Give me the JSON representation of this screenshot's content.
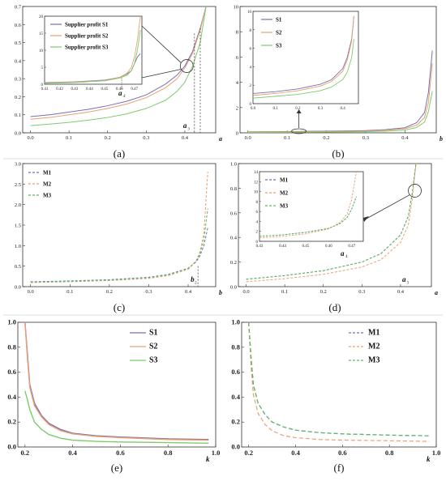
{
  "colors": {
    "s1": "#7b6fb0",
    "s2": "#e8a070",
    "s3": "#7ccc6c",
    "m1": "#6a78b8",
    "m2": "#e8a070",
    "m3": "#62b862",
    "frame": "#333333"
  },
  "chart_data": [
    {
      "id": "a",
      "type": "line",
      "caption": "(a)",
      "xlabel": "a",
      "xlim": [
        -0.02,
        0.48
      ],
      "ylim": [
        0,
        0.7
      ],
      "xticks": [
        "0.0",
        "0.1",
        "0.2",
        "0.3",
        "0.4"
      ],
      "yticks": [
        "0.0",
        "0.1",
        "0.2",
        "0.3",
        "0.4",
        "0.5",
        "0.6",
        "0.7"
      ],
      "legend": "inset-top-left",
      "series": [
        {
          "name": "Supplier profit S1",
          "x": [
            0,
            0.05,
            0.1,
            0.15,
            0.2,
            0.25,
            0.3,
            0.35,
            0.38,
            0.4,
            0.42,
            0.44,
            0.455
          ],
          "y": [
            0.09,
            0.1,
            0.115,
            0.13,
            0.15,
            0.175,
            0.21,
            0.27,
            0.32,
            0.37,
            0.45,
            0.58,
            0.7
          ]
        },
        {
          "name": "Supplier profit S2",
          "x": [
            0,
            0.05,
            0.1,
            0.15,
            0.2,
            0.25,
            0.3,
            0.35,
            0.38,
            0.4,
            0.42,
            0.44,
            0.455
          ],
          "y": [
            0.075,
            0.085,
            0.1,
            0.115,
            0.135,
            0.16,
            0.195,
            0.25,
            0.3,
            0.36,
            0.44,
            0.57,
            0.7
          ]
        },
        {
          "name": "Supplier profit S3",
          "x": [
            0,
            0.05,
            0.1,
            0.15,
            0.2,
            0.25,
            0.3,
            0.35,
            0.38,
            0.4,
            0.42,
            0.44,
            0.455
          ],
          "y": [
            0.04,
            0.048,
            0.058,
            0.07,
            0.085,
            0.105,
            0.135,
            0.18,
            0.23,
            0.28,
            0.37,
            0.5,
            0.7
          ]
        }
      ],
      "inset": {
        "xlim": [
          0.41,
          0.475
        ],
        "ylim": [
          0,
          20
        ],
        "xticks": [
          "0.41",
          "0.42",
          "0.43",
          "0.44",
          "0.45",
          "0.46",
          "0.47"
        ],
        "yticks": [
          "0",
          "5",
          "10",
          "15",
          "20"
        ],
        "annotation": "a4",
        "series": [
          {
            "x": [
              0.41,
              0.43,
              0.45,
              0.46,
              0.465,
              0.468,
              0.47,
              0.472,
              0.474
            ],
            "y": [
              0.5,
              0.7,
              1.2,
              2,
              3,
              4,
              6,
              8,
              9
            ]
          },
          {
            "x": [
              0.41,
              0.43,
              0.45,
              0.46,
              0.465,
              0.468,
              0.47,
              0.472,
              0.474
            ],
            "y": [
              0.4,
              0.6,
              1.1,
              2,
              3.2,
              5,
              8,
              13,
              20
            ]
          },
          {
            "x": [
              0.41,
              0.43,
              0.45,
              0.46,
              0.465,
              0.468,
              0.47,
              0.472,
              0.474
            ],
            "y": [
              0.3,
              0.5,
              1,
              1.8,
              2.6,
              4,
              6,
              10,
              16
            ]
          }
        ]
      },
      "markers": [
        "a3"
      ]
    },
    {
      "id": "b",
      "type": "line",
      "caption": "(b)",
      "xlabel": "b",
      "xlim": [
        -0.02,
        0.48
      ],
      "ylim": [
        0,
        10
      ],
      "xticks": [
        "0.0",
        "0.1",
        "0.2",
        "0.3",
        "0.4"
      ],
      "yticks": [
        "0",
        "2",
        "4",
        "6",
        "8",
        "10"
      ],
      "legend": "inset-top-left",
      "series": [
        {
          "name": "S1",
          "x": [
            0,
            0.1,
            0.2,
            0.3,
            0.35,
            0.4,
            0.43,
            0.45,
            0.46,
            0.47
          ],
          "y": [
            0.08,
            0.1,
            0.13,
            0.18,
            0.25,
            0.4,
            0.8,
            1.6,
            3.2,
            6.5
          ]
        },
        {
          "name": "S2",
          "x": [
            0,
            0.1,
            0.2,
            0.3,
            0.35,
            0.4,
            0.43,
            0.45,
            0.46,
            0.47
          ],
          "y": [
            0.06,
            0.08,
            0.1,
            0.14,
            0.2,
            0.32,
            0.6,
            1.2,
            2.4,
            5.5
          ]
        },
        {
          "name": "S3",
          "x": [
            0,
            0.1,
            0.2,
            0.3,
            0.35,
            0.4,
            0.43,
            0.45,
            0.46,
            0.47
          ],
          "y": [
            0.03,
            0.04,
            0.06,
            0.09,
            0.13,
            0.22,
            0.42,
            0.85,
            1.7,
            3.3
          ]
        }
      ],
      "inset": {
        "xlim": [
          0,
          0.47
        ],
        "ylim": [
          0,
          10
        ],
        "xticks": [
          "0.0",
          "0.1",
          "0.2",
          "0.3",
          "0.4"
        ],
        "yticks": [
          "0",
          "2",
          "4",
          "6",
          "8",
          "10"
        ],
        "series": [
          {
            "x": [
              0,
              0.1,
              0.2,
              0.3,
              0.35,
              0.4,
              0.42,
              0.44,
              0.45
            ],
            "y": [
              1.1,
              1.3,
              1.6,
              2.1,
              2.6,
              3.8,
              5,
              7,
              9.5
            ]
          },
          {
            "x": [
              0,
              0.1,
              0.2,
              0.3,
              0.35,
              0.4,
              0.42,
              0.44,
              0.45
            ],
            "y": [
              0.9,
              1.1,
              1.4,
              1.9,
              2.4,
              3.5,
              4.7,
              6.8,
              9.5
            ]
          },
          {
            "x": [
              0,
              0.1,
              0.2,
              0.3,
              0.35,
              0.4,
              0.42,
              0.44,
              0.45
            ],
            "y": [
              0.6,
              0.8,
              1.0,
              1.4,
              1.8,
              2.6,
              3.4,
              5,
              7
            ]
          }
        ]
      }
    },
    {
      "id": "c",
      "type": "line",
      "caption": "(c)",
      "xlabel": "b",
      "xlim": [
        -0.02,
        0.47
      ],
      "ylim": [
        0,
        3.0
      ],
      "xticks": [
        "0.0",
        "0.1",
        "0.2",
        "0.3",
        "0.4"
      ],
      "yticks": [
        "0.0",
        "0.5",
        "1.0",
        "1.5",
        "2.0",
        "2.5",
        "3.0"
      ],
      "legend": "top-left",
      "series": [
        {
          "name": "M1",
          "x": [
            0,
            0.1,
            0.2,
            0.3,
            0.35,
            0.4,
            0.42,
            0.43,
            0.44,
            0.45
          ],
          "y": [
            0.12,
            0.14,
            0.17,
            0.23,
            0.3,
            0.45,
            0.6,
            0.75,
            1.0,
            1.45
          ]
        },
        {
          "name": "M2",
          "x": [
            0,
            0.1,
            0.2,
            0.3,
            0.35,
            0.4,
            0.42,
            0.43,
            0.44,
            0.45
          ],
          "y": [
            0.1,
            0.12,
            0.15,
            0.2,
            0.27,
            0.42,
            0.62,
            0.85,
            1.3,
            2.8
          ]
        },
        {
          "name": "M3",
          "x": [
            0,
            0.1,
            0.2,
            0.3,
            0.35,
            0.4,
            0.42,
            0.43,
            0.44,
            0.45
          ],
          "y": [
            0.11,
            0.13,
            0.16,
            0.22,
            0.29,
            0.44,
            0.62,
            0.8,
            1.15,
            1.9
          ]
        }
      ],
      "markers": [
        "b2"
      ]
    },
    {
      "id": "d",
      "type": "line",
      "caption": "(d)",
      "xlabel": "a",
      "xlim": [
        -0.02,
        0.48
      ],
      "ylim": [
        0,
        1.0
      ],
      "xticks": [
        "0.0",
        "0.1",
        "0.2",
        "0.3",
        "0.4"
      ],
      "yticks": [
        "0.0",
        "0.2",
        "0.4",
        "0.6",
        "0.8",
        "1.0"
      ],
      "legend": "inset-top-left",
      "series": [
        {
          "name": "M1",
          "x": [
            0,
            0.1,
            0.2,
            0.3,
            0.35,
            0.4,
            0.42,
            0.43,
            0.44
          ],
          "y": [
            0.06,
            0.09,
            0.13,
            0.2,
            0.27,
            0.42,
            0.57,
            0.75,
            1.0
          ]
        },
        {
          "name": "M2",
          "x": [
            0,
            0.1,
            0.2,
            0.3,
            0.35,
            0.4,
            0.42,
            0.43,
            0.44
          ],
          "y": [
            0.04,
            0.065,
            0.1,
            0.16,
            0.22,
            0.36,
            0.5,
            0.7,
            1.0
          ]
        },
        {
          "name": "M3",
          "x": [
            0,
            0.1,
            0.2,
            0.3,
            0.35,
            0.4,
            0.42,
            0.43,
            0.44
          ],
          "y": [
            0.06,
            0.09,
            0.13,
            0.2,
            0.27,
            0.42,
            0.57,
            0.75,
            1.0
          ]
        }
      ],
      "inset": {
        "xlim": [
          0.43,
          0.475
        ],
        "ylim": [
          0,
          14
        ],
        "xticks": [
          "0.43",
          "0.44",
          "0.45",
          "0.46",
          "0.47"
        ],
        "yticks": [
          "0",
          "2",
          "4",
          "6",
          "8",
          "10",
          "12",
          "14"
        ],
        "annotation": "a4",
        "series": [
          {
            "x": [
              0.43,
              0.44,
              0.45,
              0.46,
              0.465,
              0.468,
              0.47,
              0.472
            ],
            "y": [
              1,
              1.3,
              1.8,
              2.6,
              3.6,
              4.8,
              6.5,
              9
            ]
          },
          {
            "x": [
              0.43,
              0.44,
              0.45,
              0.46,
              0.465,
              0.468,
              0.47,
              0.472
            ],
            "y": [
              0.7,
              1.0,
              1.5,
              2.5,
              3.8,
              5.5,
              8.5,
              14
            ]
          },
          {
            "x": [
              0.43,
              0.44,
              0.45,
              0.46,
              0.465,
              0.468,
              0.47,
              0.472
            ],
            "y": [
              1,
              1.3,
              1.8,
              2.6,
              3.6,
              4.8,
              6.5,
              9
            ]
          }
        ]
      },
      "markers": [
        "a3"
      ]
    },
    {
      "id": "e",
      "type": "line",
      "caption": "(e)",
      "xlabel": "k",
      "xlim": [
        0.17,
        1.0
      ],
      "ylim": [
        0,
        1.0
      ],
      "xticks": [
        "0.2",
        "0.4",
        "0.6",
        "0.8",
        "1.0"
      ],
      "yticks": [
        "0.0",
        "0.2",
        "0.4",
        "0.6",
        "0.8",
        "1.0"
      ],
      "legend": "top-right",
      "series": [
        {
          "name": "S1",
          "x": [
            0.2,
            0.21,
            0.22,
            0.24,
            0.27,
            0.3,
            0.35,
            0.4,
            0.5,
            0.6,
            0.8,
            0.97
          ],
          "y": [
            1.0,
            0.75,
            0.5,
            0.35,
            0.25,
            0.19,
            0.14,
            0.11,
            0.09,
            0.08,
            0.065,
            0.06
          ]
        },
        {
          "name": "S2",
          "x": [
            0.2,
            0.21,
            0.22,
            0.24,
            0.27,
            0.3,
            0.35,
            0.4,
            0.5,
            0.6,
            0.8,
            0.97
          ],
          "y": [
            1.0,
            0.72,
            0.48,
            0.33,
            0.24,
            0.18,
            0.13,
            0.105,
            0.085,
            0.075,
            0.06,
            0.055
          ]
        },
        {
          "name": "S3",
          "x": [
            0.2,
            0.21,
            0.22,
            0.24,
            0.27,
            0.3,
            0.35,
            0.4,
            0.5,
            0.6,
            0.8,
            0.97
          ],
          "y": [
            0.45,
            0.38,
            0.3,
            0.2,
            0.14,
            0.1,
            0.07,
            0.055,
            0.045,
            0.04,
            0.035,
            0.03
          ]
        }
      ]
    },
    {
      "id": "f",
      "type": "line",
      "caption": "(f)",
      "xlabel": "k",
      "xlim": [
        0.17,
        1.0
      ],
      "ylim": [
        0,
        1.0
      ],
      "xticks": [
        "0.2",
        "0.4",
        "0.6",
        "0.8",
        "1.0"
      ],
      "yticks": [
        "0.0",
        "0.2",
        "0.4",
        "0.6",
        "0.8",
        "1.0"
      ],
      "legend": "top-right",
      "series": [
        {
          "name": "M1",
          "x": [
            0.2,
            0.21,
            0.22,
            0.24,
            0.27,
            0.3,
            0.35,
            0.4,
            0.5,
            0.6,
            0.8,
            0.97
          ],
          "y": [
            1.0,
            0.72,
            0.5,
            0.35,
            0.26,
            0.2,
            0.16,
            0.135,
            0.115,
            0.105,
            0.095,
            0.09
          ]
        },
        {
          "name": "M2",
          "x": [
            0.2,
            0.21,
            0.22,
            0.24,
            0.27,
            0.3,
            0.35,
            0.4,
            0.5,
            0.6,
            0.8,
            0.97
          ],
          "y": [
            1.0,
            0.65,
            0.42,
            0.27,
            0.18,
            0.13,
            0.09,
            0.075,
            0.06,
            0.055,
            0.05,
            0.045
          ]
        },
        {
          "name": "M3",
          "x": [
            0.2,
            0.21,
            0.22,
            0.24,
            0.27,
            0.3,
            0.35,
            0.4,
            0.5,
            0.6,
            0.8,
            0.97
          ],
          "y": [
            1.0,
            0.72,
            0.5,
            0.35,
            0.26,
            0.2,
            0.16,
            0.135,
            0.115,
            0.105,
            0.095,
            0.09
          ]
        }
      ]
    }
  ]
}
